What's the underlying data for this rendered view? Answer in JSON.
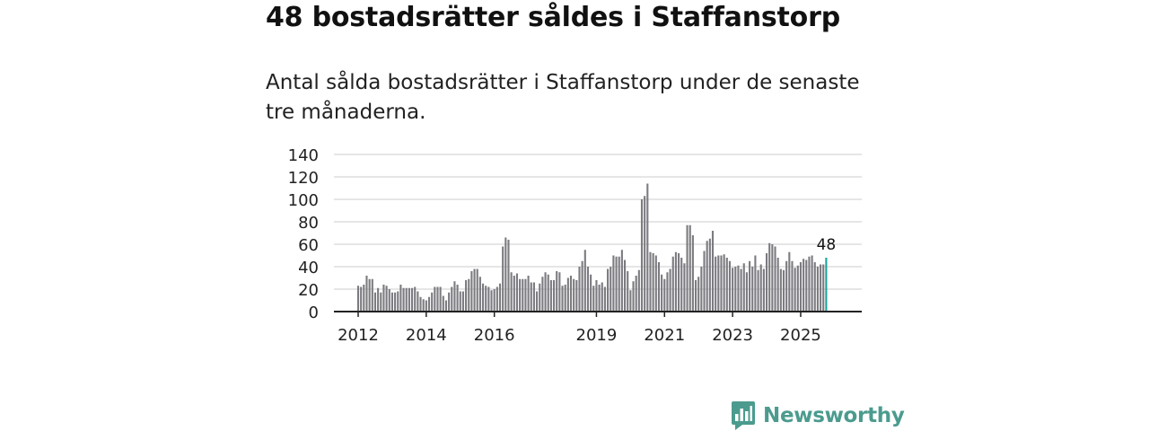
{
  "title": "48 bostadsrätter såldes i Staffanstorp",
  "subtitle": "Antal sålda bostadsrätter i Staffanstorp under de senaste tre månaderna.",
  "brand": {
    "name": "Newsworthy",
    "color": "#4b9b8e"
  },
  "colors": {
    "bar": "#7b7b80",
    "highlight": "#1aa39a",
    "grid": "#dddddd",
    "axis": "#222222"
  },
  "chart_data": {
    "type": "bar",
    "title": "Antal sålda bostadsrätter i Staffanstorp",
    "xlabel": "",
    "ylabel": "",
    "ylim": [
      0,
      140
    ],
    "yticks": [
      0,
      20,
      40,
      60,
      80,
      100,
      120,
      140
    ],
    "xticks": [
      {
        "label": "2012",
        "index": 0
      },
      {
        "label": "2014",
        "index": 24
      },
      {
        "label": "2016",
        "index": 48
      },
      {
        "label": "2019",
        "index": 84
      },
      {
        "label": "2021",
        "index": 108
      },
      {
        "label": "2023",
        "index": 132
      },
      {
        "label": "2025",
        "index": 156
      }
    ],
    "start": "2012-01",
    "frequency": "monthly",
    "values": [
      23,
      22,
      24,
      32,
      29,
      29,
      17,
      21,
      17,
      24,
      23,
      20,
      17,
      17,
      18,
      24,
      21,
      21,
      21,
      21,
      22,
      18,
      13,
      11,
      10,
      13,
      17,
      22,
      22,
      22,
      14,
      10,
      17,
      22,
      27,
      24,
      18,
      18,
      28,
      29,
      36,
      38,
      38,
      31,
      25,
      23,
      22,
      19,
      20,
      22,
      25,
      58,
      66,
      64,
      35,
      32,
      34,
      29,
      29,
      29,
      32,
      26,
      26,
      18,
      25,
      31,
      35,
      33,
      28,
      28,
      36,
      35,
      23,
      24,
      30,
      32,
      29,
      28,
      40,
      45,
      55,
      40,
      33,
      23,
      28,
      24,
      26,
      22,
      38,
      40,
      50,
      49,
      49,
      55,
      46,
      36,
      19,
      27,
      32,
      37,
      100,
      103,
      114,
      53,
      52,
      50,
      44,
      33,
      29,
      35,
      38,
      49,
      53,
      52,
      48,
      43,
      77,
      77,
      68,
      28,
      31,
      40,
      54,
      63,
      65,
      72,
      49,
      50,
      50,
      51,
      48,
      45,
      39,
      40,
      41,
      38,
      43,
      35,
      45,
      40,
      50,
      37,
      42,
      38,
      52,
      61,
      60,
      58,
      48,
      38,
      37,
      45,
      53,
      45,
      39,
      41,
      44,
      47,
      46,
      49,
      50,
      44,
      40,
      42,
      42,
      48
    ]
  }
}
